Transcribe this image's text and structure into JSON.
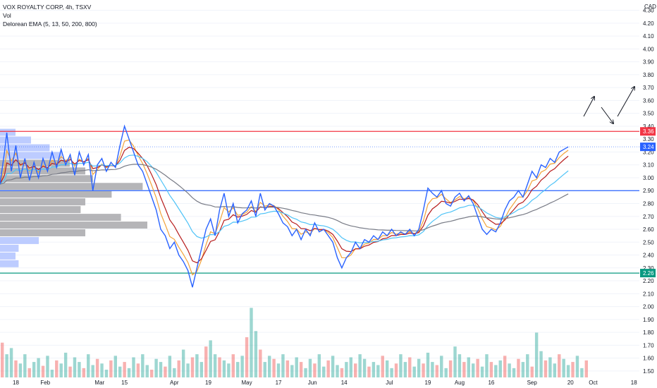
{
  "header": {
    "title": "VOX ROYALTY CORP, 4h, TSXV",
    "indicator_vol": "Vol",
    "indicator_ema": "Delorean EMA (5, 13, 50, 200, 800)"
  },
  "currency": "CAD",
  "colors": {
    "price": "#2962ff",
    "ema5": "#f2a33a",
    "ema13": "#b71c1c",
    "ema50": "#4fc3f7",
    "ema200": "#787b86",
    "resistance": "#f23645",
    "support": "#089981",
    "mid_level": "#2962ff",
    "vol_up": "#26a69a",
    "vol_down": "#ef5350",
    "profile_blue": "#b2c3ff",
    "profile_gray": "#a8a8ab"
  },
  "chart_data": {
    "type": "line",
    "symbol": "VOX ROYALTY CORP",
    "interval": "4h",
    "exchange": "TSXV",
    "y_axis": {
      "ticks": [
        1.5,
        1.6,
        1.7,
        1.8,
        1.9,
        2.0,
        2.1,
        2.2,
        2.3,
        2.4,
        2.5,
        2.6,
        2.7,
        2.8,
        2.9,
        3.0,
        3.1,
        3.2,
        3.3,
        3.4,
        3.5,
        3.6,
        3.7,
        3.8,
        3.9,
        4.0,
        4.1,
        4.2,
        4.3
      ],
      "tick_labels": [
        "1.50",
        "1.60",
        "1.70",
        "1.80",
        "1.90",
        "2.00",
        "2.10",
        "2.20",
        "2.30",
        "2.40",
        "2.50",
        "2.60",
        "2.70",
        "2.80",
        "2.90",
        "3.00",
        "3.10",
        "3.20",
        "3.30",
        "3.40",
        "3.50",
        "3.60",
        "3.70",
        "3.80",
        "3.90",
        "4.00",
        "4.10",
        "4.20",
        "4.30"
      ],
      "range": [
        1.45,
        4.38
      ]
    },
    "x_axis": {
      "range": [
        0,
        260
      ],
      "ticks": [
        {
          "label": "18",
          "t": 7
        },
        {
          "label": "Feb",
          "t": 20
        },
        {
          "label": "Mar",
          "t": 44
        },
        {
          "label": "15",
          "t": 55
        },
        {
          "label": "Apr",
          "t": 77
        },
        {
          "label": "19",
          "t": 92
        },
        {
          "label": "May",
          "t": 109
        },
        {
          "label": "17",
          "t": 123
        },
        {
          "label": "Jun",
          "t": 138
        },
        {
          "label": "14",
          "t": 152
        },
        {
          "label": "Jul",
          "t": 172
        },
        {
          "label": "19",
          "t": 189
        },
        {
          "label": "Aug",
          "t": 203
        },
        {
          "label": "16",
          "t": 217
        },
        {
          "label": "Sep",
          "t": 235
        },
        {
          "label": "20",
          "t": 252
        },
        {
          "label": "Oct",
          "t": 262
        },
        {
          "label": "18",
          "t": 280
        }
      ]
    },
    "levels": [
      {
        "name": "resistance",
        "value": 3.36,
        "label": "3.36",
        "color": "#f23645"
      },
      {
        "name": "mid",
        "value": 2.9,
        "color": "#2962ff"
      },
      {
        "name": "support",
        "value": 2.26,
        "label": "2.26",
        "color": "#089981"
      }
    ],
    "last_price": {
      "value": 3.24,
      "label": "3.24"
    },
    "price_points": [
      [
        0,
        2.95
      ],
      [
        2,
        3.2
      ],
      [
        3,
        3.35
      ],
      [
        5,
        3.05
      ],
      [
        7,
        3.25
      ],
      [
        9,
        3.0
      ],
      [
        11,
        3.15
      ],
      [
        13,
        2.98
      ],
      [
        15,
        3.12
      ],
      [
        17,
        3.0
      ],
      [
        19,
        3.15
      ],
      [
        21,
        3.05
      ],
      [
        23,
        3.2
      ],
      [
        25,
        3.08
      ],
      [
        27,
        3.22
      ],
      [
        29,
        3.1
      ],
      [
        31,
        3.18
      ],
      [
        33,
        3.02
      ],
      [
        35,
        3.2
      ],
      [
        37,
        3.1
      ],
      [
        39,
        3.18
      ],
      [
        41,
        2.9
      ],
      [
        43,
        3.1
      ],
      [
        45,
        3.15
      ],
      [
        47,
        3.05
      ],
      [
        49,
        3.12
      ],
      [
        51,
        3.08
      ],
      [
        53,
        3.25
      ],
      [
        55,
        3.4
      ],
      [
        57,
        3.3
      ],
      [
        59,
        3.2
      ],
      [
        61,
        3.1
      ],
      [
        63,
        3.05
      ],
      [
        65,
        2.95
      ],
      [
        67,
        2.85
      ],
      [
        69,
        2.75
      ],
      [
        71,
        2.6
      ],
      [
        73,
        2.55
      ],
      [
        75,
        2.45
      ],
      [
        77,
        2.5
      ],
      [
        79,
        2.4
      ],
      [
        81,
        2.35
      ],
      [
        83,
        2.28
      ],
      [
        85,
        2.15
      ],
      [
        87,
        2.3
      ],
      [
        89,
        2.45
      ],
      [
        91,
        2.6
      ],
      [
        93,
        2.68
      ],
      [
        95,
        2.55
      ],
      [
        97,
        2.75
      ],
      [
        99,
        2.88
      ],
      [
        101,
        2.7
      ],
      [
        103,
        2.8
      ],
      [
        105,
        2.65
      ],
      [
        107,
        2.72
      ],
      [
        109,
        2.75
      ],
      [
        111,
        2.82
      ],
      [
        113,
        2.7
      ],
      [
        115,
        2.88
      ],
      [
        117,
        2.75
      ],
      [
        119,
        2.8
      ],
      [
        121,
        2.78
      ],
      [
        123,
        2.72
      ],
      [
        125,
        2.65
      ],
      [
        127,
        2.62
      ],
      [
        129,
        2.55
      ],
      [
        131,
        2.6
      ],
      [
        133,
        2.52
      ],
      [
        135,
        2.6
      ],
      [
        137,
        2.55
      ],
      [
        139,
        2.65
      ],
      [
        141,
        2.58
      ],
      [
        143,
        2.6
      ],
      [
        145,
        2.55
      ],
      [
        147,
        2.5
      ],
      [
        149,
        2.38
      ],
      [
        151,
        2.3
      ],
      [
        153,
        2.38
      ],
      [
        155,
        2.42
      ],
      [
        157,
        2.5
      ],
      [
        159,
        2.45
      ],
      [
        161,
        2.52
      ],
      [
        163,
        2.5
      ],
      [
        165,
        2.55
      ],
      [
        167,
        2.52
      ],
      [
        169,
        2.58
      ],
      [
        171,
        2.55
      ],
      [
        173,
        2.6
      ],
      [
        175,
        2.55
      ],
      [
        177,
        2.58
      ],
      [
        179,
        2.56
      ],
      [
        181,
        2.6
      ],
      [
        183,
        2.55
      ],
      [
        185,
        2.6
      ],
      [
        187,
        2.75
      ],
      [
        189,
        2.92
      ],
      [
        191,
        2.88
      ],
      [
        193,
        2.85
      ],
      [
        195,
        2.9
      ],
      [
        197,
        2.8
      ],
      [
        199,
        2.78
      ],
      [
        201,
        2.85
      ],
      [
        203,
        2.88
      ],
      [
        205,
        2.82
      ],
      [
        207,
        2.86
      ],
      [
        209,
        2.8
      ],
      [
        211,
        2.7
      ],
      [
        213,
        2.6
      ],
      [
        215,
        2.56
      ],
      [
        217,
        2.6
      ],
      [
        219,
        2.58
      ],
      [
        221,
        2.65
      ],
      [
        223,
        2.75
      ],
      [
        225,
        2.82
      ],
      [
        227,
        2.85
      ],
      [
        229,
        2.9
      ],
      [
        231,
        2.85
      ],
      [
        233,
        2.95
      ],
      [
        235,
        3.05
      ],
      [
        237,
        3.0
      ],
      [
        239,
        3.1
      ],
      [
        241,
        3.08
      ],
      [
        243,
        3.15
      ],
      [
        245,
        3.12
      ],
      [
        247,
        3.2
      ],
      [
        249,
        3.22
      ],
      [
        251,
        3.24
      ]
    ],
    "volume_bars": [
      0.45,
      0.3,
      0.38,
      0.22,
      0.18,
      0.3,
      0.12,
      0.2,
      0.25,
      0.15,
      0.28,
      0.1,
      0.22,
      0.18,
      0.32,
      0.14,
      0.26,
      0.2,
      0.12,
      0.3,
      0.16,
      0.24,
      0.18,
      0.1,
      0.22,
      0.28,
      0.14,
      0.2,
      0.12,
      0.26,
      0.18,
      0.3,
      0.16,
      0.1,
      0.24,
      0.2,
      0.14,
      0.28,
      0.12,
      0.22,
      0.36,
      0.18,
      0.26,
      0.3,
      0.2,
      0.4,
      0.48,
      0.3,
      0.26,
      0.22,
      0.18,
      0.3,
      0.2,
      0.28,
      0.52,
      0.9,
      0.6,
      0.36,
      0.2,
      0.28,
      0.24,
      0.18,
      0.3,
      0.22,
      0.16,
      0.26,
      0.2,
      0.12,
      0.24,
      0.18,
      0.3,
      0.14,
      0.22,
      0.28,
      0.16,
      0.12,
      0.2,
      0.26,
      0.18,
      0.3,
      0.24,
      0.14,
      0.2,
      0.16,
      0.28,
      0.22,
      0.12,
      0.18,
      0.3,
      0.2,
      0.26,
      0.14,
      0.24,
      0.18,
      0.32,
      0.2,
      0.16,
      0.28,
      0.12,
      0.22,
      0.4,
      0.3,
      0.2,
      0.26,
      0.18,
      0.24,
      0.14,
      0.3,
      0.2,
      0.16,
      0.22,
      0.28,
      0.18,
      0.12,
      0.24,
      0.2,
      0.3,
      0.14,
      0.58,
      0.34,
      0.22,
      0.26,
      0.18,
      0.3,
      0.24,
      0.16,
      0.2,
      0.28,
      0.12,
      0.22
    ]
  }
}
